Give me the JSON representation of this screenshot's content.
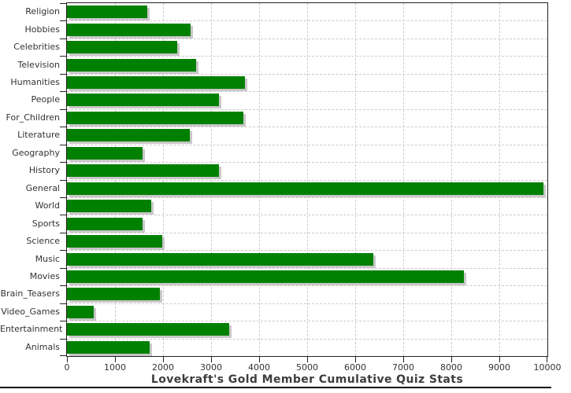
{
  "chart_data": {
    "type": "bar",
    "orientation": "horizontal",
    "title": "Lovekraft's Gold Member Cumulative Quiz Stats",
    "categories": [
      "Religion",
      "Hobbies",
      "Celebrities",
      "Television",
      "Humanities",
      "People",
      "For_Children",
      "Literature",
      "Geography",
      "History",
      "General",
      "World",
      "Sports",
      "Science",
      "Music",
      "Movies",
      "Brain_Teasers",
      "Video_Games",
      "Entertainment",
      "Animals"
    ],
    "values": [
      1680,
      2580,
      2300,
      2690,
      3700,
      3160,
      3680,
      2550,
      1570,
      3170,
      9910,
      1760,
      1570,
      1980,
      6380,
      8270,
      1940,
      550,
      3370,
      1720
    ],
    "xlabel": "",
    "ylabel": "",
    "xlim": [
      0,
      10000
    ],
    "x_ticks": [
      0,
      1000,
      2000,
      3000,
      4000,
      5000,
      6000,
      7000,
      8000,
      9000,
      10000
    ],
    "grid": "dashed both axes",
    "legend": "none",
    "colors": {
      "bar": "#008000",
      "bar_shadow": "#c8c8c8",
      "grid": "#cccccc",
      "axis": "#222222",
      "tick_label": "#333333",
      "title": "#3d3d3d"
    }
  }
}
